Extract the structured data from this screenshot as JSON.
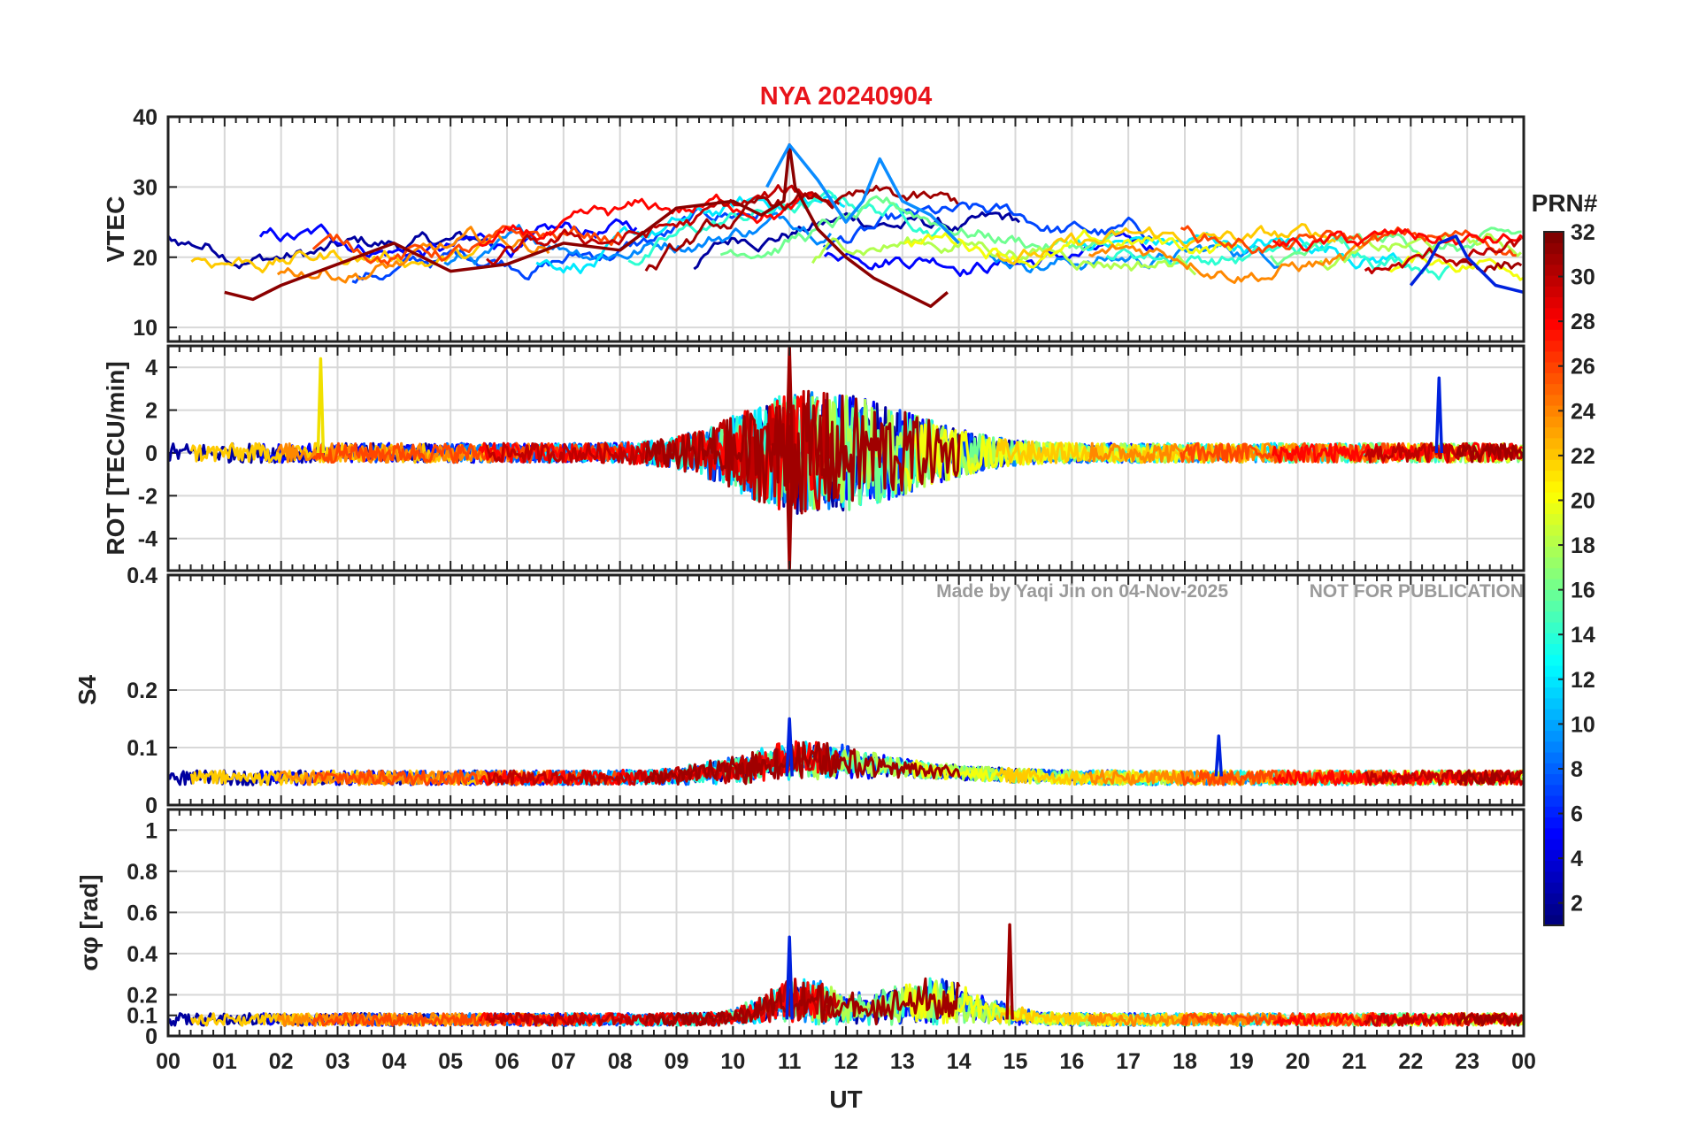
{
  "chart_data": {
    "type": "line",
    "title": "NYA   20240904",
    "station": "NYA",
    "date": "20240904",
    "xlabel": "UT",
    "xlim": [
      0,
      24
    ],
    "x_ticks": [
      "00",
      "01",
      "02",
      "03",
      "04",
      "05",
      "06",
      "07",
      "08",
      "09",
      "10",
      "11",
      "12",
      "13",
      "14",
      "15",
      "16",
      "17",
      "18",
      "19",
      "20",
      "21",
      "22",
      "23",
      "00"
    ],
    "watermark_left": "Made by Yaqi Jin on 04-Nov-2025",
    "watermark_right": "NOT FOR PUBLICATION",
    "colorbar": {
      "label": "PRN#",
      "range": [
        1,
        32
      ],
      "ticks": [
        "2",
        "4",
        "6",
        "8",
        "10",
        "12",
        "14",
        "16",
        "18",
        "20",
        "22",
        "24",
        "26",
        "28",
        "30",
        "32"
      ],
      "colormap": "jet"
    },
    "panels": [
      {
        "id": "vtec",
        "ylabel": "VTEC",
        "ylim": [
          8,
          40
        ],
        "y_ticks": [
          "10",
          "20",
          "30",
          "40"
        ],
        "series_example": [
          {
            "name": "PRN 31 (dark red)",
            "x": [
              1.0,
              1.5,
              2.0,
              3.0,
              4.0,
              5.0,
              6.0,
              7.0,
              8.0,
              9.0,
              10.0,
              10.5,
              10.9,
              11.0,
              11.1,
              11.5,
              12.0,
              12.5,
              13.0,
              13.5,
              13.8
            ],
            "y": [
              15,
              14,
              16,
              19,
              22,
              18,
              19,
              22,
              21,
              27,
              28,
              26,
              28,
              36,
              30,
              24,
              20,
              17,
              15,
              13,
              15
            ]
          },
          {
            "name": "PRN 8 (blue)",
            "x": [
              10.6,
              11.0,
              11.5,
              12.0,
              12.3,
              12.6,
              13.0,
              13.5,
              14.0
            ],
            "y": [
              30,
              36,
              31,
              25,
              28,
              34,
              28,
              26,
              22
            ]
          },
          {
            "name": "PRN 5 (blue)",
            "x": [
              22.0,
              22.3,
              22.5,
              22.8,
              23.0,
              23.5,
              24.0
            ],
            "y": [
              16,
              19,
              22,
              23,
              20,
              16,
              15
            ]
          }
        ]
      },
      {
        "id": "rot",
        "ylabel": "ROT [TECU/min]",
        "ylim": [
          -5.5,
          5
        ],
        "y_ticks": [
          "-4",
          "-2",
          "0",
          "2",
          "4"
        ],
        "notable_peaks": [
          {
            "x": 2.7,
            "y": 4.4,
            "color": "yellow"
          },
          {
            "x": 11.0,
            "y": 4.9,
            "color": "dark red"
          },
          {
            "x": 11.0,
            "y": -5.4,
            "color": "dark red"
          },
          {
            "x": 22.5,
            "y": 3.5,
            "color": "blue"
          }
        ]
      },
      {
        "id": "s4",
        "ylabel": "S4",
        "ylim": [
          0,
          0.4
        ],
        "y_ticks": [
          "0",
          "0.1",
          "0.2",
          "0.4"
        ],
        "typical_level": 0.05,
        "notable_peaks": [
          {
            "x": 11.0,
            "y": 0.15,
            "color": "blue"
          },
          {
            "x": 18.6,
            "y": 0.12,
            "color": "blue"
          }
        ]
      },
      {
        "id": "sigma_phi",
        "ylabel": "σφ [rad]",
        "ylim": [
          0,
          1.1
        ],
        "y_ticks": [
          "0",
          "0.1",
          "0.2",
          "0.4",
          "0.6",
          "0.8",
          "1"
        ],
        "typical_level": 0.08,
        "notable_peaks": [
          {
            "x": 11.0,
            "y": 0.48,
            "color": "blue"
          },
          {
            "x": 14.9,
            "y": 0.54,
            "color": "dark red"
          }
        ]
      }
    ]
  }
}
